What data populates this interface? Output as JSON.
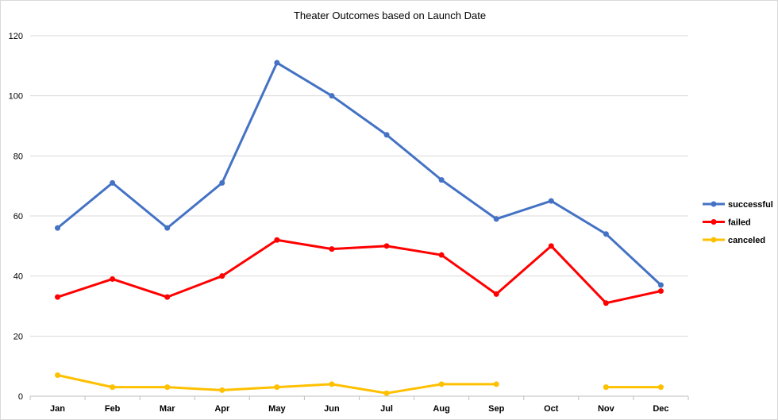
{
  "chart_data": {
    "type": "line",
    "title": "Theater Outcomes based on Launch Date",
    "xlabel": "",
    "ylabel": "",
    "categories": [
      "Jan",
      "Feb",
      "Mar",
      "Apr",
      "May",
      "Jun",
      "Jul",
      "Aug",
      "Sep",
      "Oct",
      "Nov",
      "Dec"
    ],
    "ylim": [
      0,
      120
    ],
    "yticks": [
      0,
      20,
      40,
      60,
      80,
      100,
      120
    ],
    "grid": true,
    "legend_position": "right",
    "series": [
      {
        "name": "successful",
        "color": "#4472c4",
        "values": [
          56,
          71,
          56,
          71,
          111,
          100,
          87,
          72,
          59,
          65,
          54,
          37
        ]
      },
      {
        "name": "failed",
        "color": "#ff0000",
        "values": [
          33,
          39,
          33,
          40,
          52,
          49,
          50,
          47,
          34,
          50,
          31,
          35
        ]
      },
      {
        "name": "canceled",
        "color": "#ffc000",
        "values": [
          7,
          3,
          3,
          2,
          3,
          4,
          1,
          4,
          4,
          null,
          3,
          3
        ]
      }
    ]
  }
}
